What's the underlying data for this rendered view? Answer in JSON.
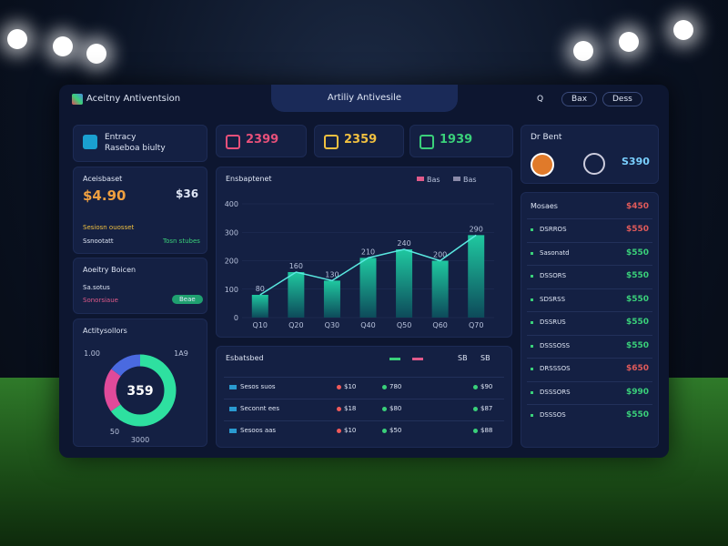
{
  "header": {
    "app_name": "Aceitny Antiventsion",
    "tab": "Artiliy Antivesile",
    "search": "Q",
    "buttons": [
      "Bax",
      "Dess"
    ]
  },
  "cards": {
    "profile": {
      "title": "Entracy",
      "subtitle": "Raseboa biulty"
    },
    "stats": [
      {
        "value": "2399",
        "color": "#e8507a"
      },
      {
        "value": "2359",
        "color": "#f0c040"
      },
      {
        "value": "1939",
        "color": "#3ad07a"
      }
    ],
    "user": {
      "title": "Dr Bent",
      "value": "S390"
    },
    "balance": {
      "title": "Aceisbaset",
      "primary": "$4.90",
      "secondary": "$36",
      "row1": "Sesiosn ouosset",
      "row2": "Ssnootatt",
      "row3": "Tosn stubes"
    },
    "status": {
      "title": "Aoeitry Boicen",
      "line1": "Sa.sotus",
      "line2": "Sonorsiaue",
      "button": "Beae"
    },
    "donut": {
      "title": "Actitysollors",
      "center": "359",
      "labels": [
        "1A9",
        "1.00",
        "50",
        "3000"
      ],
      "segments": [
        {
          "value": 65,
          "color": "#2ee0a0"
        },
        {
          "value": 20,
          "color": "#e04a9a"
        },
        {
          "value": 15,
          "color": "#4a6ae0"
        }
      ]
    }
  },
  "bar_chart": {
    "title": "Ensbaptenet",
    "legend": [
      {
        "label": "Bas",
        "color": "#e05a8a"
      },
      {
        "label": "Bas",
        "color": "#8a8aa8"
      }
    ],
    "categories": [
      "Q10",
      "Q20",
      "Q30",
      "Q40",
      "Q50",
      "Q60",
      "Q70"
    ],
    "values": [
      80,
      160,
      130,
      210,
      240,
      200,
      290
    ],
    "ylim": [
      0,
      400
    ],
    "yticks": [
      0,
      100,
      200,
      300,
      400
    ],
    "color": "#1fc8a0"
  },
  "table": {
    "title": "Esbatsbed",
    "legend": [
      {
        "label": "SB",
        "color": "#3ad07a"
      },
      {
        "label": "SB",
        "color": "#e05a8a"
      }
    ],
    "rows": [
      [
        "Sesos suos",
        "$10",
        "780",
        "$90"
      ],
      [
        "Seconnt ees",
        "$18",
        "$80",
        "$87"
      ],
      [
        "Sesoos aas",
        "$10",
        "$50",
        "$88"
      ]
    ]
  },
  "list": {
    "title": "Mosaes",
    "total": "$450",
    "rows": [
      {
        "name": "DSRROS",
        "value": "$550",
        "color": "#e05a5a"
      },
      {
        "name": "Sasonatd",
        "value": "$550",
        "color": "#3ad07a"
      },
      {
        "name": "DSSORS",
        "value": "$550",
        "color": "#3ad07a"
      },
      {
        "name": "SDSRSS",
        "value": "$550",
        "color": "#3ad07a"
      },
      {
        "name": "DSSRUS",
        "value": "$550",
        "color": "#3ad07a"
      },
      {
        "name": "DSSSOSS",
        "value": "$550",
        "color": "#3ad07a"
      },
      {
        "name": "DRSSSOS",
        "value": "$650",
        "color": "#e05a5a"
      },
      {
        "name": "DSSSORS",
        "value": "$990",
        "color": "#3ad07a"
      },
      {
        "name": "DSSSOS",
        "value": "$550",
        "color": "#3ad07a"
      }
    ]
  }
}
